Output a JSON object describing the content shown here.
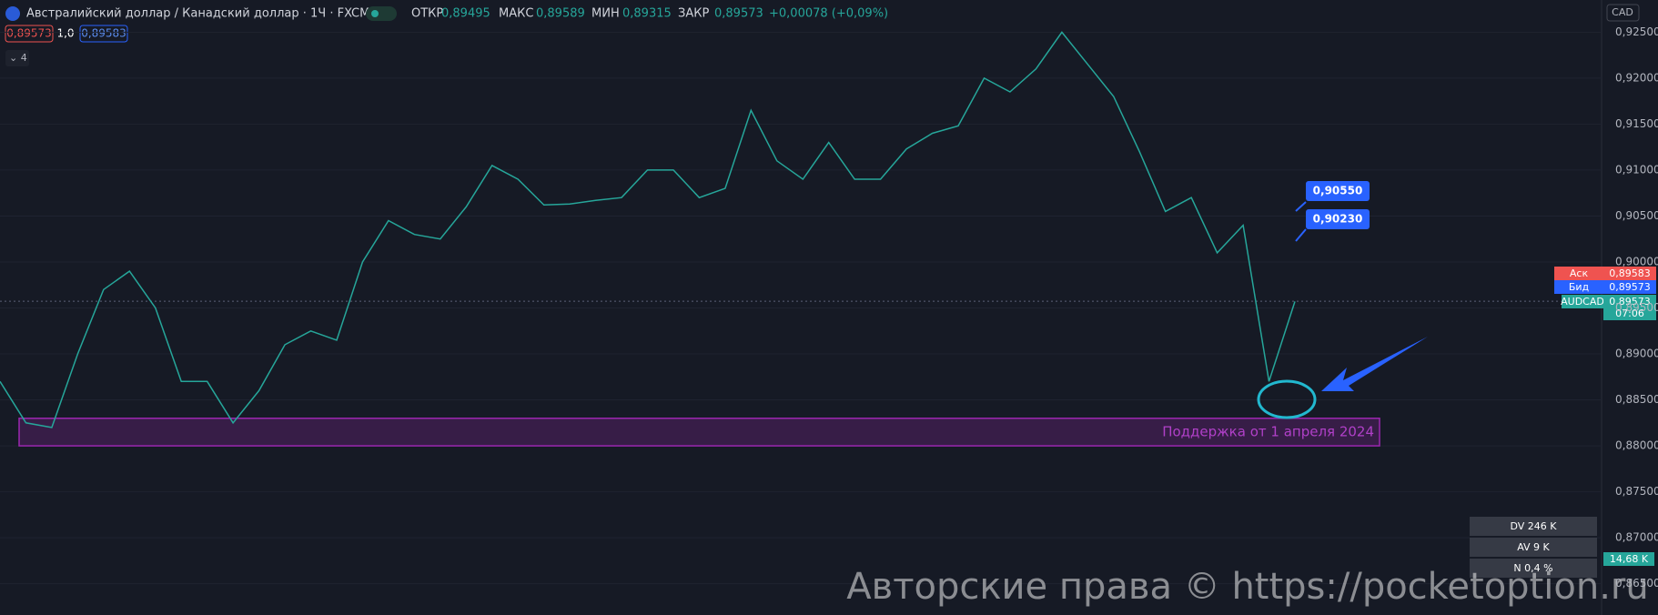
{
  "header": {
    "title": "Австралийский доллар / Канадский доллар · 1Ч · FXCM",
    "open_label": "ОТКР",
    "open": "0,89495",
    "high_label": "МАКС",
    "high": "0,89589",
    "low_label": "МИН",
    "low": "0,89315",
    "close_label": "ЗАКР",
    "close": "0,89573",
    "change": "+0,00078 (+0,09%)",
    "sell": "0,89573",
    "spread": "1,0",
    "buy": "0,89583",
    "indicators": "⌄ 4",
    "currency": "CAD"
  },
  "chart_data": {
    "type": "line",
    "color": "#26a69a",
    "categories": [
      null,
      null,
      null,
      null,
      null,
      null,
      null,
      null,
      null,
      null,
      null,
      null,
      null,
      null,
      null,
      null,
      null,
      null,
      null,
      null,
      null,
      null,
      null,
      null,
      null,
      null,
      null,
      null,
      null,
      null,
      null,
      null,
      null,
      null,
      null,
      null,
      null,
      null,
      null,
      null,
      null,
      null,
      null,
      null,
      null,
      null,
      null,
      null,
      null,
      null,
      null
    ],
    "values": [
      0.887,
      0.8825,
      0.882,
      0.89,
      0.897,
      0.899,
      0.895,
      0.887,
      0.887,
      0.8825,
      0.886,
      0.891,
      0.8925,
      0.8915,
      0.9,
      0.9045,
      0.903,
      0.9025,
      0.906,
      0.9105,
      0.909,
      0.9062,
      0.9063,
      0.9067,
      0.907,
      0.91,
      0.91,
      0.907,
      0.908,
      0.9165,
      0.911,
      0.909,
      0.913,
      0.909,
      0.909,
      0.9123,
      0.914,
      0.9148,
      0.92,
      0.9185,
      0.921,
      0.925,
      0.9215,
      0.918,
      0.912,
      0.9055,
      0.907,
      0.901,
      0.904,
      0.887,
      0.8957
    ],
    "ylim": [
      0.8616,
      0.9285
    ],
    "yticks": [
      {
        "value": 0.925,
        "label": "0,92500"
      },
      {
        "value": 0.92,
        "label": "0,92000"
      },
      {
        "value": 0.915,
        "label": "0,91500"
      },
      {
        "value": 0.91,
        "label": "0,91000"
      },
      {
        "value": 0.905,
        "label": "0,90500"
      },
      {
        "value": 0.9,
        "label": "0,90000"
      },
      {
        "value": 0.895,
        "label": "0,89500"
      },
      {
        "value": 0.89,
        "label": "0,89000"
      },
      {
        "value": 0.885,
        "label": "0,88500"
      },
      {
        "value": 0.88,
        "label": "0,88000"
      },
      {
        "value": 0.875,
        "label": "0,87500"
      },
      {
        "value": 0.87,
        "label": "0,87000"
      },
      {
        "value": 0.865,
        "label": "0,86500"
      }
    ],
    "last_price": 0.89573,
    "support_zone": [
      0.88,
      0.883
    ],
    "support_label": "Поддержка от 1 апреля 2024",
    "grid": true
  },
  "annotations": {
    "callout_upper": "0,90550",
    "callout_lower": "0,90230"
  },
  "price_tags": {
    "ask_label": "Аск",
    "ask": "0,89583",
    "bid_label": "Бид",
    "bid": "0,89573",
    "symbol": "AUDCAD",
    "last": "0,89573",
    "countdown": "07:06"
  },
  "volume_stats": [
    "DV 246 K",
    "AV 9 K",
    "N 0,4 %",
    "14,68 K"
  ],
  "watermark": "Авторские права © https://pocketoption.ru"
}
